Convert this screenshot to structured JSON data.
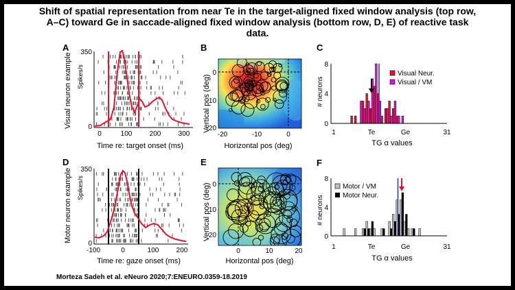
{
  "title_lines": [
    "Shift of spatial representation from near Te in the target-aligned fixed window analysis (top row,",
    "A–C) toward Ge in saccade-aligned fixed window analysis (bottom row, D, E) of reactive task",
    "data."
  ],
  "citation": "Morteza Sadeh et al. eNeuro 2020;7:ENEURO.0359-18.2019",
  "panels": {
    "A": {
      "letter": "A",
      "side_label": "Visual neuron example",
      "y_axis": "Spikes/s",
      "y_top": "350",
      "y_bottom": "0",
      "x_ticks": [
        "0",
        "100",
        "200",
        "300"
      ],
      "x_label": "Time re: target onset (ms)"
    },
    "B": {
      "letter": "B",
      "y_label": "Vertical pos (deg)",
      "x_label": "Horizontal pos (deg)",
      "y_ticks": [
        "0",
        "-10",
        "-20"
      ],
      "x_ticks": [
        "-20",
        "-10",
        "0"
      ]
    },
    "C": {
      "letter": "C",
      "y_label": "# neurons",
      "y_ticks": [
        "8",
        "4",
        "0"
      ],
      "x_ticks": [
        "1",
        "Te",
        "Ge",
        "31"
      ],
      "x_label": "TG α values",
      "legend": [
        "Visual Neur.",
        "Visual / VM"
      ]
    },
    "D": {
      "letter": "D",
      "side_label": "Motor neuron example",
      "y_axis": "Spikes/s",
      "y_top": "350",
      "y_bottom": "0",
      "x_ticks": [
        "-100",
        "0",
        "100",
        "200"
      ],
      "x_label": "Time re: gaze onset (ms)"
    },
    "E": {
      "letter": "E",
      "y_label": "Vertical pos (deg)",
      "x_label": "Horizontal pos (deg)",
      "y_ticks": [
        "0",
        "10",
        "20"
      ],
      "x_ticks": [
        "0",
        "10",
        "20"
      ]
    },
    "F": {
      "letter": "F",
      "y_label": "# neurons",
      "y_ticks": [
        "8",
        "4",
        "0"
      ],
      "x_ticks": [
        "1",
        "Te",
        "Ge",
        "31"
      ],
      "x_label": "TG α values",
      "legend": [
        "Motor / VM",
        "Motor Neur."
      ]
    }
  },
  "chart_data": [
    {
      "panel": "C",
      "type": "bar",
      "x_label": "TG α values",
      "y_label": "# neurons",
      "ylim": [
        0,
        8
      ],
      "categories": [
        6,
        7,
        8,
        9,
        10,
        11,
        12,
        13,
        14,
        15,
        16,
        17,
        18,
        19
      ],
      "series": [
        {
          "name": "Visual Neur.",
          "color": "#e8112d",
          "values": [
            1,
            1,
            0,
            3,
            4,
            2,
            5,
            4,
            1,
            2,
            3,
            2,
            1,
            0
          ]
        },
        {
          "name": "Visual / VM",
          "color": "#d21ad2",
          "values": [
            0,
            0,
            3,
            2,
            3,
            6,
            8,
            3,
            0,
            2,
            1,
            3,
            1,
            1
          ]
        }
      ],
      "markers": {
        "blue_line": 13,
        "black_arrow": 11
      }
    },
    {
      "panel": "F",
      "type": "bar",
      "x_label": "TG α values",
      "y_label": "# neurons",
      "ylim": [
        0,
        8
      ],
      "categories": [
        4,
        7,
        9,
        10,
        11,
        12,
        14,
        16,
        17,
        18,
        19,
        20,
        21,
        22,
        24
      ],
      "series": [
        {
          "name": "Motor / VM",
          "color": "#c0c0c0",
          "values": [
            1,
            1,
            1,
            2,
            1,
            1,
            1,
            2,
            3,
            5,
            5,
            2,
            1,
            1,
            1
          ]
        },
        {
          "name": "Motor Neur.",
          "color": "#000000",
          "values": [
            0,
            0,
            1,
            1,
            2,
            0,
            1,
            1,
            2,
            3,
            6,
            3,
            0,
            1,
            0
          ]
        }
      ],
      "markers": {
        "blue_line": 18,
        "red_arrow": 19
      }
    }
  ],
  "colors": {
    "visual": "#e8112d",
    "visual_vm": "#d21ad2",
    "motor": "#000000",
    "motor_vm": "#c0c0c0",
    "marker_line": "#1034cf"
  }
}
